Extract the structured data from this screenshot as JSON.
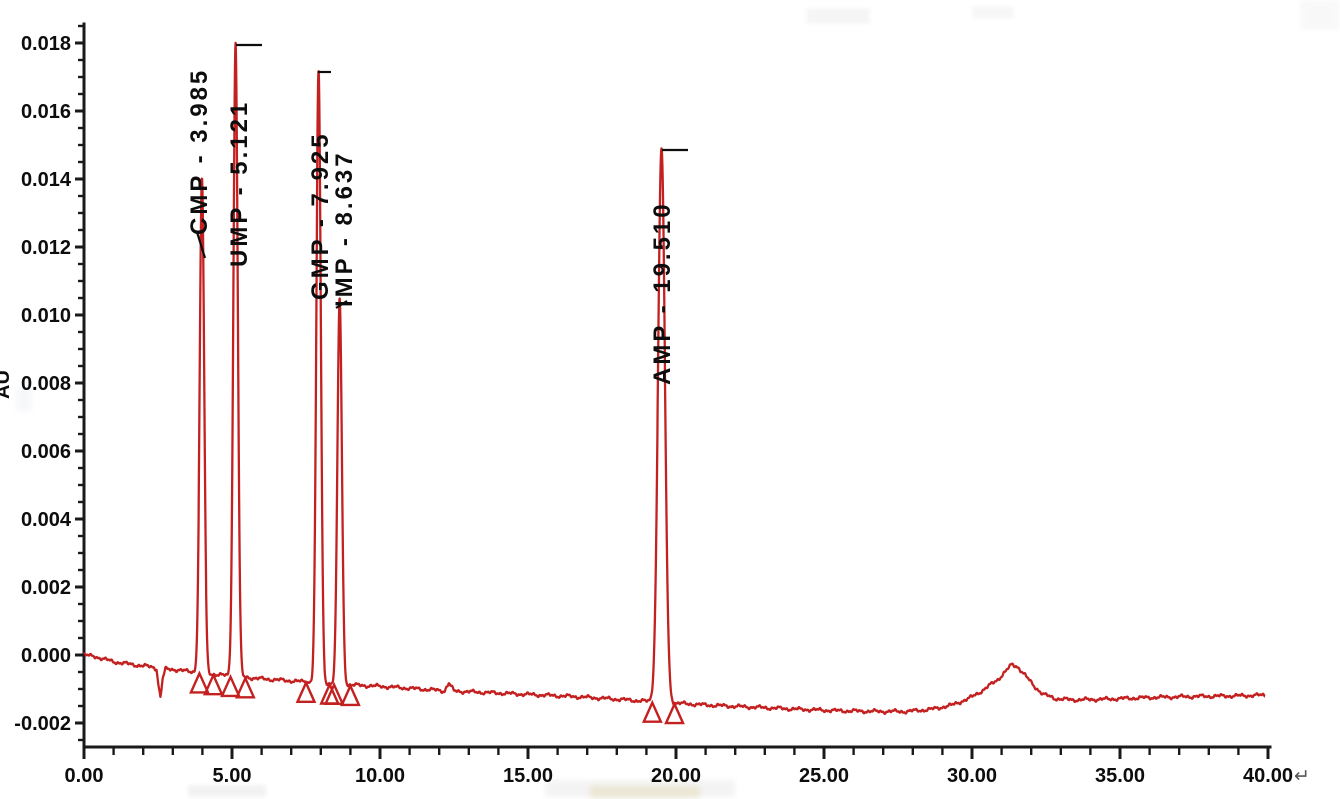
{
  "chart_data": {
    "type": "line",
    "title": "",
    "ylabel": "AU",
    "ylabel_note_visible": "partially cut off at left image edge",
    "trace_color": "#c32020",
    "axis_color": "#1a1a1a",
    "text_color": "#0d0d0d",
    "x_axis": {
      "min": 0,
      "max": 40,
      "major_step": 5,
      "minor_step": 1,
      "tick_labels": [
        "0.00",
        "5.00",
        "10.00",
        "15.00",
        "20.00",
        "25.00",
        "30.00",
        "35.00",
        "40.00"
      ],
      "trailing_symbol": "↵"
    },
    "y_axis": {
      "min": -0.002,
      "max": 0.018,
      "major_step": 0.002,
      "minor_step": 0.0005,
      "tick_labels": [
        "0.018",
        "0.016",
        "0.014",
        "0.012",
        "0.010",
        "0.008",
        "0.006",
        "0.004",
        "0.002",
        "0.000",
        "-0.002"
      ]
    },
    "peaks": [
      {
        "name": "CMP",
        "label": "CMP - 3.985",
        "rt": 3.985,
        "apex_au": 0.014,
        "sigma_min": 0.075,
        "integration_start": 3.9,
        "integration_end": 4.37
      },
      {
        "name": "UMP",
        "label": "UMP - 5.121",
        "rt": 5.121,
        "apex_au": 0.018,
        "sigma_min": 0.075,
        "integration_start": 4.95,
        "integration_end": 5.45
      },
      {
        "name": "GMP",
        "label": "GMP - 7.925",
        "rt": 7.925,
        "apex_au": 0.0172,
        "sigma_min": 0.075,
        "integration_start": 7.5,
        "integration_end": 8.3
      },
      {
        "name": "IMP",
        "label": "IMP - 8.637",
        "rt": 8.637,
        "apex_au": 0.0105,
        "sigma_min": 0.075,
        "integration_start": 8.45,
        "integration_end": 9.0
      },
      {
        "name": "AMP",
        "label": "AMP - 19.510",
        "rt": 19.51,
        "apex_au": 0.0149,
        "sigma_min": 0.115,
        "integration_start": 19.2,
        "integration_end": 19.95
      }
    ],
    "baseline_au": [
      [
        0,
        0
      ],
      [
        0.4,
        -5e-05
      ],
      [
        1.0,
        -0.0002
      ],
      [
        1.8,
        -0.0003
      ],
      [
        2.3,
        -0.00035
      ],
      [
        2.45,
        -0.0004
      ],
      [
        2.52,
        -0.0009
      ],
      [
        2.58,
        -0.00125
      ],
      [
        2.66,
        -0.0007
      ],
      [
        2.75,
        -0.00042
      ],
      [
        3.0,
        -0.00042
      ],
      [
        3.5,
        -0.00048
      ],
      [
        4.0,
        -0.00052
      ],
      [
        4.5,
        -0.00058
      ],
      [
        5.0,
        -0.00062
      ],
      [
        5.5,
        -0.00066
      ],
      [
        6.0,
        -0.0007
      ],
      [
        7.0,
        -0.00076
      ],
      [
        8.0,
        -0.00082
      ],
      [
        9.0,
        -0.00088
      ],
      [
        10.0,
        -0.00092
      ],
      [
        11.0,
        -0.00098
      ],
      [
        12.0,
        -0.00104
      ],
      [
        12.18,
        -0.00106
      ],
      [
        12.32,
        -0.00082
      ],
      [
        12.5,
        -0.00106
      ],
      [
        13.5,
        -0.0011
      ],
      [
        15.0,
        -0.00116
      ],
      [
        16.5,
        -0.00122
      ],
      [
        18.0,
        -0.0013
      ],
      [
        19.5,
        -0.00139
      ],
      [
        21.0,
        -0.00147
      ],
      [
        22.5,
        -0.00153
      ],
      [
        24.0,
        -0.00159
      ],
      [
        25.5,
        -0.00164
      ],
      [
        26.8,
        -0.00166
      ],
      [
        27.8,
        -0.00166
      ],
      [
        28.6,
        -0.0016
      ],
      [
        29.3,
        -0.00148
      ],
      [
        29.9,
        -0.00128
      ],
      [
        30.4,
        -0.00102
      ],
      [
        30.9,
        -0.0007
      ],
      [
        31.2,
        -0.00042
      ],
      [
        31.35,
        -0.00028
      ],
      [
        31.55,
        -0.00035
      ],
      [
        31.8,
        -0.0006
      ],
      [
        32.1,
        -0.00092
      ],
      [
        32.4,
        -0.00115
      ],
      [
        32.8,
        -0.00128
      ],
      [
        33.4,
        -0.00132
      ],
      [
        34.5,
        -0.0013
      ],
      [
        36.0,
        -0.00125
      ],
      [
        37.5,
        -0.00122
      ],
      [
        39.0,
        -0.0012
      ],
      [
        39.9,
        -0.00118
      ]
    ],
    "trace_end_min": 39.9
  }
}
